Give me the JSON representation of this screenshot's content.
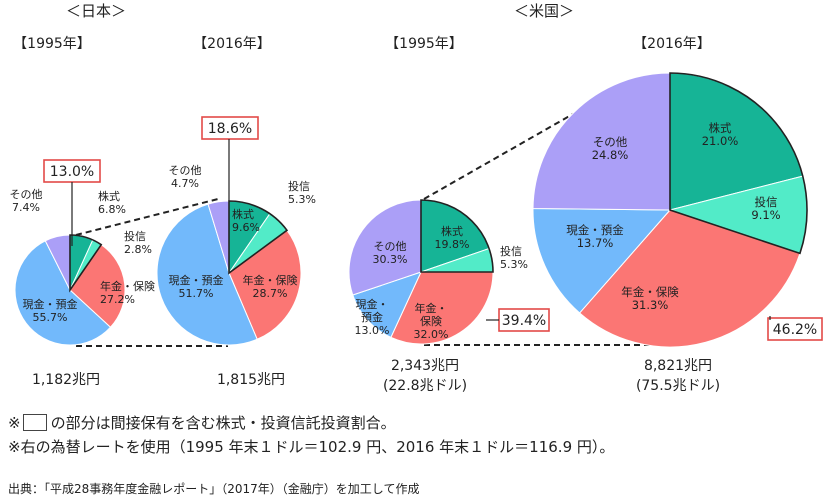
{
  "chart_data": {
    "type": "pie",
    "colors": {
      "stocks": "#16b496",
      "trusts": "#52ebc8",
      "pension": "#fb7674",
      "cash": "#72b9fb",
      "other": "#ab9ff7",
      "highlight": "#e34a48",
      "guide": "#222222"
    },
    "groups": [
      {
        "title": "＜日本＞",
        "pies": [
          {
            "year": "【1995年】",
            "total": "1,182兆円",
            "subtotal": "",
            "indirect_share": "13.0%",
            "slices": [
              {
                "key": "stocks",
                "label": "株式",
                "value": 6.8,
                "value_label": "6.8%"
              },
              {
                "key": "trusts",
                "label": "投信",
                "value": 2.8,
                "value_label": "2.8%"
              },
              {
                "key": "pension",
                "label": "年金・保険",
                "value": 27.2,
                "value_label": "27.2%"
              },
              {
                "key": "cash",
                "label": "現金・預金",
                "value": 55.7,
                "value_label": "55.7%"
              },
              {
                "key": "other",
                "label": "その他",
                "value": 7.4,
                "value_label": "7.4%"
              }
            ]
          },
          {
            "year": "【2016年】",
            "total": "1,815兆円",
            "subtotal": "",
            "indirect_share": "18.6%",
            "slices": [
              {
                "key": "stocks",
                "label": "株式",
                "value": 9.6,
                "value_label": "9.6%"
              },
              {
                "key": "trusts",
                "label": "投信",
                "value": 5.3,
                "value_label": "5.3%"
              },
              {
                "key": "pension",
                "label": "年金・保険",
                "value": 28.7,
                "value_label": "28.7%"
              },
              {
                "key": "cash",
                "label": "現金・預金",
                "value": 51.7,
                "value_label": "51.7%"
              },
              {
                "key": "other",
                "label": "その他",
                "value": 4.7,
                "value_label": "4.7%"
              }
            ]
          }
        ]
      },
      {
        "title": "＜米国＞",
        "pies": [
          {
            "year": "【1995年】",
            "total": "2,343兆円",
            "subtotal": "(22.8兆ドル)",
            "indirect_share": "39.4%",
            "slices": [
              {
                "key": "stocks",
                "label": "株式",
                "value": 19.8,
                "value_label": "19.8%"
              },
              {
                "key": "trusts",
                "label": "投信",
                "value": 5.3,
                "value_label": "5.3%"
              },
              {
                "key": "pension",
                "label": "年金・保険",
                "value": 32.0,
                "value_label": "32.0%"
              },
              {
                "key": "cash",
                "label": "現金・預金",
                "value": 13.0,
                "value_label": "13.0%"
              },
              {
                "key": "other",
                "label": "その他",
                "value": 30.3,
                "value_label": "30.3%"
              }
            ]
          },
          {
            "year": "【2016年】",
            "total": "8,821兆円",
            "subtotal": "(75.5兆ドル)",
            "indirect_share": "46.2%",
            "slices": [
              {
                "key": "stocks",
                "label": "株式",
                "value": 21.0,
                "value_label": "21.0%"
              },
              {
                "key": "trusts",
                "label": "投信",
                "value": 9.1,
                "value_label": "9.1%"
              },
              {
                "key": "pension",
                "label": "年金・保険",
                "value": 31.3,
                "value_label": "31.3%"
              },
              {
                "key": "cash",
                "label": "現金・預金",
                "value": 13.7,
                "value_label": "13.7%"
              },
              {
                "key": "other",
                "label": "その他",
                "value": 24.8,
                "value_label": "24.8%"
              }
            ]
          }
        ]
      }
    ]
  },
  "notes": {
    "note1_prefix": "※",
    "note1_text": "の部分は間接保有を含む株式・投資信託投資割合。",
    "note2": "※右の為替レートを使用（1995 年末１ドル＝102.9 円、2016 年末１ドル＝116.9 円）。",
    "source": "出典：「平成28事務年度金融レポート」（2017年）（金融庁）を加工して作成"
  }
}
